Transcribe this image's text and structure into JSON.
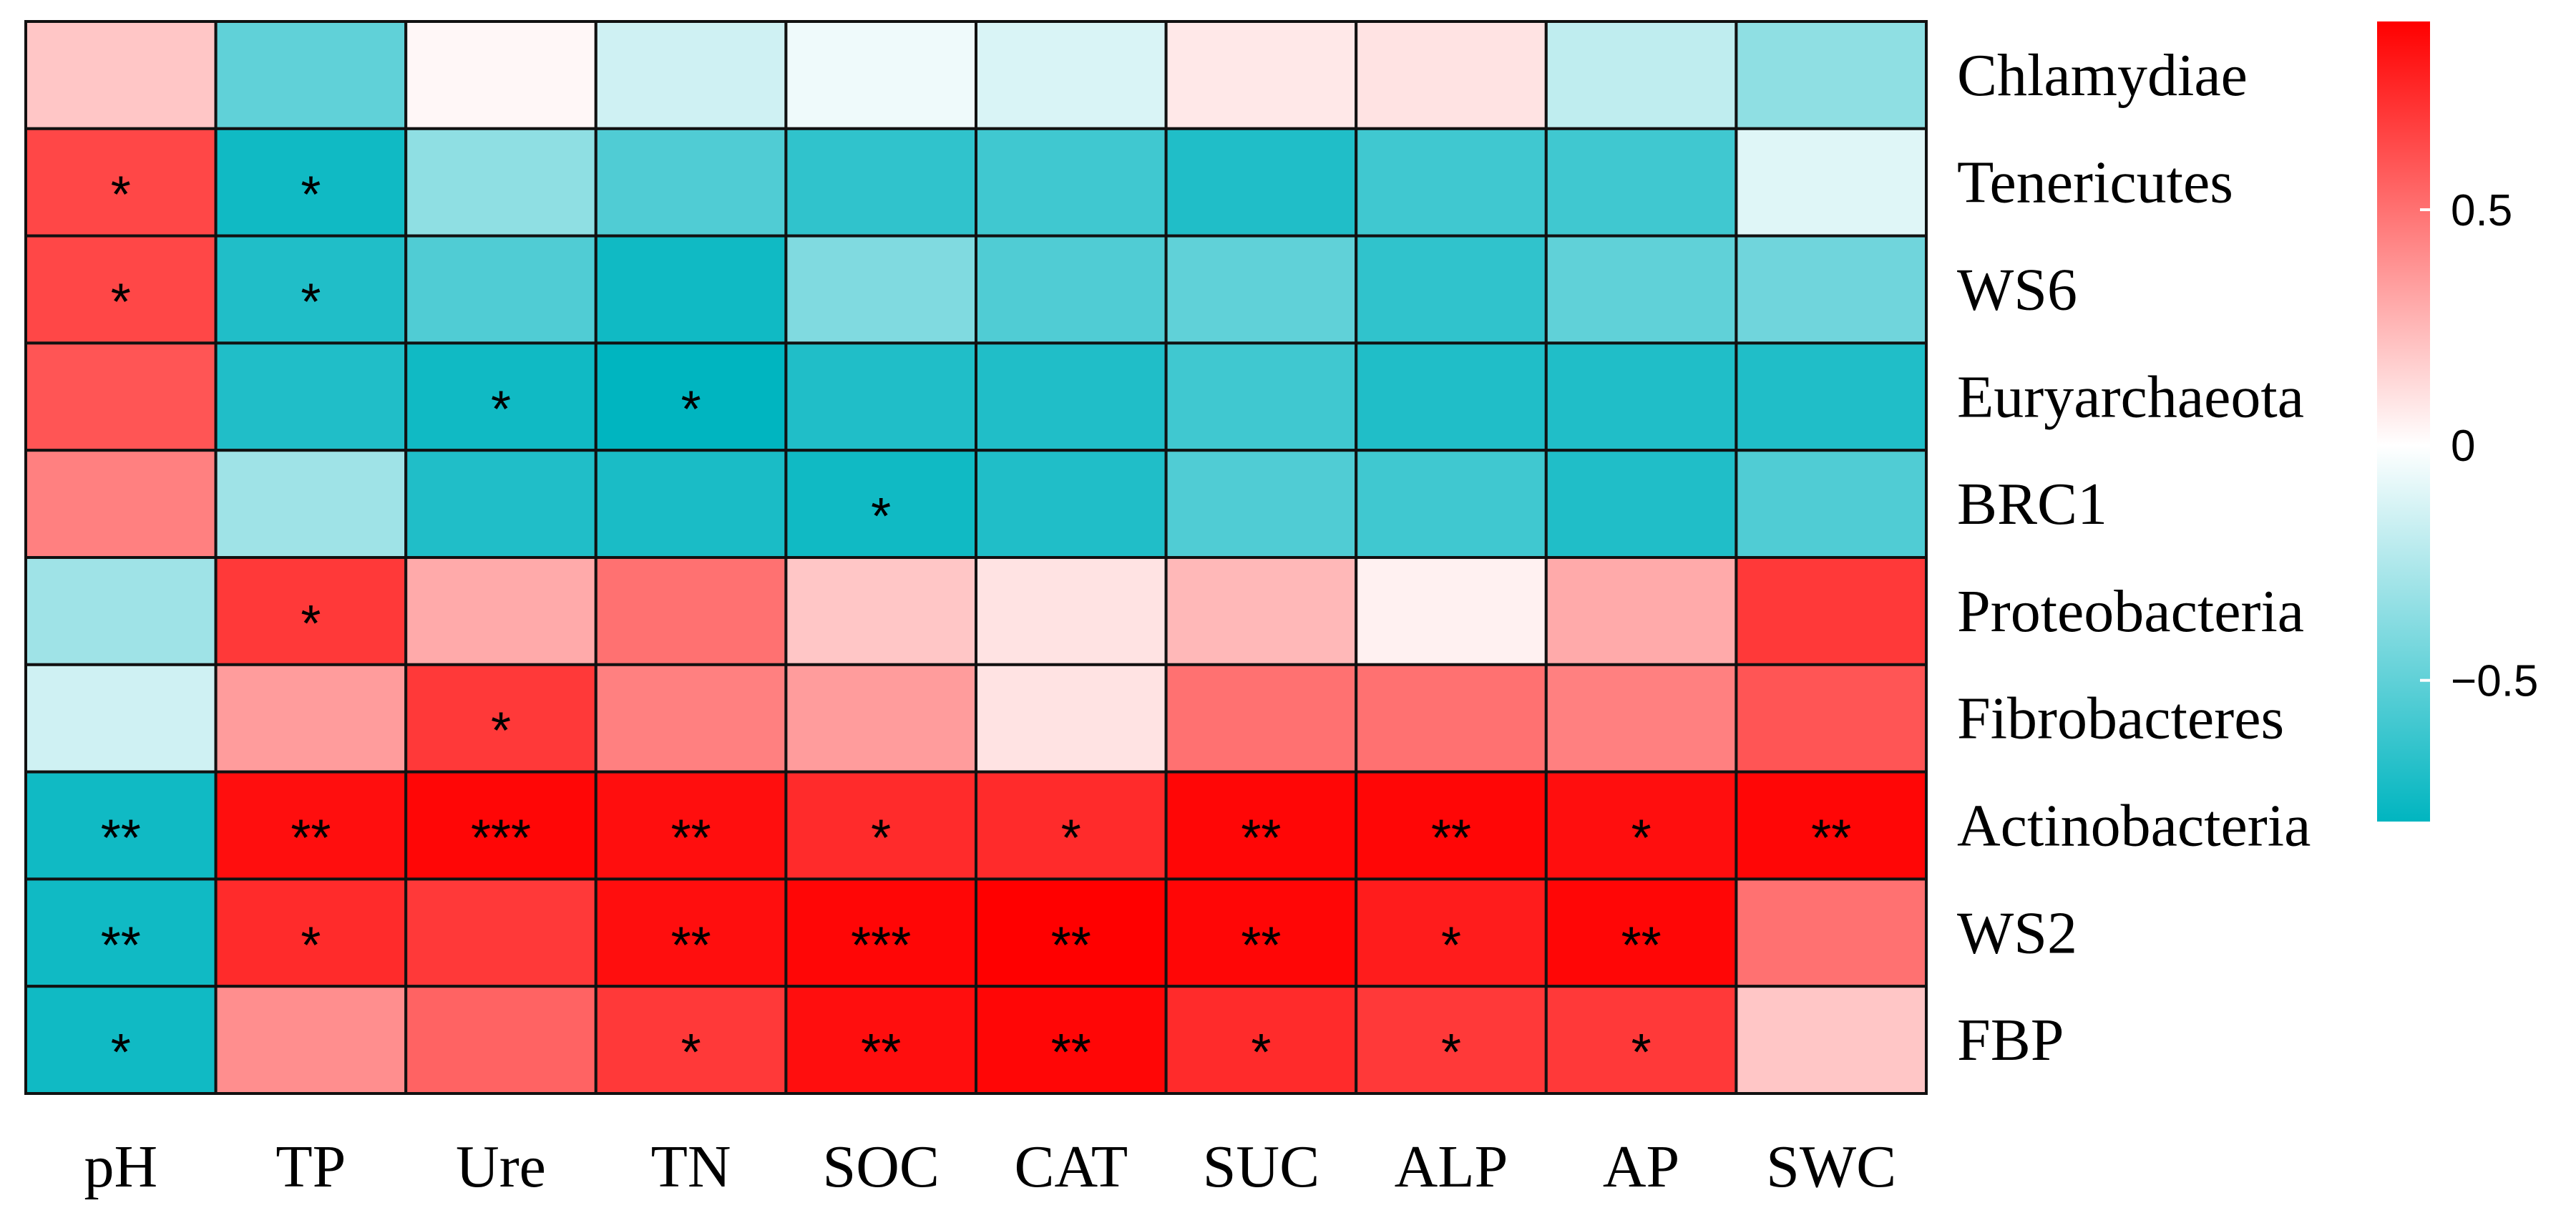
{
  "chart_data": {
    "type": "heatmap",
    "title": "",
    "xlabel": "",
    "ylabel": "",
    "columns": [
      "pH",
      "TP",
      "Ure",
      "TN",
      "SOC",
      "CAT",
      "SUC",
      "ALP",
      "AP",
      "SWC"
    ],
    "rows": [
      "Chlamydiae",
      "Tenericutes",
      "WS6",
      "Euryarchaeota",
      "BRC1",
      "Proteobacteria",
      "Fibrobacteres",
      "Actinobacteria",
      "WS2",
      "FBP"
    ],
    "values": [
      [
        0.2,
        -0.5,
        0.03,
        -0.15,
        -0.05,
        -0.12,
        0.08,
        0.1,
        -0.2,
        -0.35
      ],
      [
        0.65,
        -0.75,
        -0.35,
        -0.55,
        -0.65,
        -0.6,
        -0.7,
        -0.6,
        -0.6,
        -0.1
      ],
      [
        0.65,
        -0.7,
        -0.55,
        -0.75,
        -0.4,
        -0.55,
        -0.5,
        -0.65,
        -0.5,
        -0.45
      ],
      [
        0.6,
        -0.7,
        -0.75,
        -0.8,
        -0.7,
        -0.7,
        -0.6,
        -0.7,
        -0.7,
        -0.7
      ],
      [
        0.45,
        -0.3,
        -0.7,
        -0.72,
        -0.75,
        -0.7,
        -0.55,
        -0.6,
        -0.7,
        -0.55
      ],
      [
        -0.3,
        0.7,
        0.3,
        0.5,
        0.2,
        0.1,
        0.25,
        0.05,
        0.3,
        0.7
      ],
      [
        -0.15,
        0.35,
        0.7,
        0.45,
        0.35,
        0.1,
        0.5,
        0.5,
        0.45,
        0.6
      ],
      [
        -0.75,
        0.85,
        0.88,
        0.85,
        0.75,
        0.75,
        0.88,
        0.88,
        0.85,
        0.88
      ],
      [
        -0.75,
        0.75,
        0.7,
        0.85,
        0.88,
        0.9,
        0.88,
        0.8,
        0.88,
        0.5
      ],
      [
        -0.75,
        0.4,
        0.55,
        0.7,
        0.85,
        0.88,
        0.75,
        0.7,
        0.7,
        0.2
      ]
    ],
    "significance": [
      [
        "",
        "",
        "",
        "",
        "",
        "",
        "",
        "",
        "",
        ""
      ],
      [
        "*",
        "*",
        "",
        "",
        "",
        "",
        "",
        "",
        "",
        ""
      ],
      [
        "*",
        "*",
        "",
        "",
        "",
        "",
        "",
        "",
        "",
        ""
      ],
      [
        "",
        "",
        "*",
        "*",
        "",
        "",
        "",
        "",
        "",
        ""
      ],
      [
        "",
        "",
        "",
        "",
        "*",
        "",
        "",
        "",
        "",
        ""
      ],
      [
        "",
        "*",
        "",
        "",
        "",
        "",
        "",
        "",
        "",
        ""
      ],
      [
        "",
        "",
        "*",
        "",
        "",
        "",
        "",
        "",
        "",
        ""
      ],
      [
        "**",
        "**",
        "***",
        "**",
        "*",
        "*",
        "**",
        "**",
        "*",
        "**"
      ],
      [
        "**",
        "*",
        "",
        "**",
        "***",
        "**",
        "**",
        "*",
        "**",
        ""
      ],
      [
        "*",
        "",
        "",
        "*",
        "**",
        "**",
        "*",
        "*",
        "*",
        ""
      ]
    ],
    "color_scale": {
      "low": "#00B5C0",
      "mid": "#FFFFFF",
      "high": "#FF0000",
      "range": [
        -0.8,
        0.9
      ]
    },
    "colorbar_ticks": [
      {
        "value": 0.5,
        "label": "0.5"
      },
      {
        "value": 0,
        "label": "0"
      },
      {
        "value": -0.5,
        "label": "−0.5"
      }
    ],
    "legend_position": "right"
  }
}
